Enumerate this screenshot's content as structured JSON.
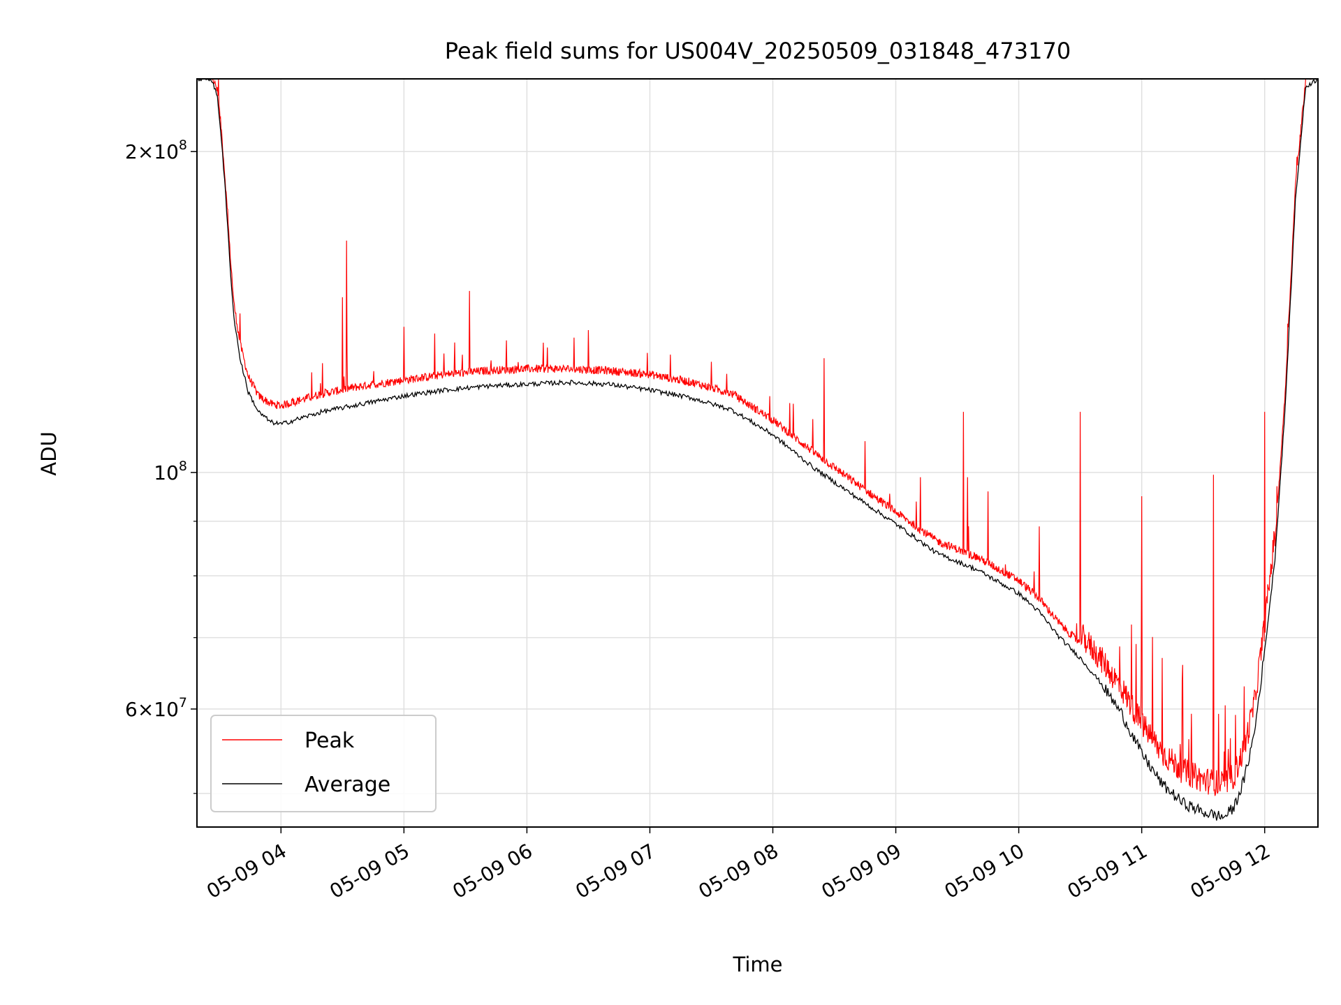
{
  "chart_data": {
    "type": "line",
    "title": "Peak field sums for US004V_20250509_031848_473170",
    "xlabel": "Time",
    "ylabel": "ADU",
    "yscale": "log",
    "grid": true,
    "legend_placement": "lower-left",
    "xlim": [
      "05-09 03:19",
      "05-09 12:26"
    ],
    "ylim": [
      46500000,
      234000000
    ],
    "x_ticks": [
      "05-09 04",
      "05-09 05",
      "05-09 06",
      "05-09 07",
      "05-09 08",
      "05-09 09",
      "05-09 10",
      "05-09 11",
      "05-09 12"
    ],
    "y_tick_labels": [
      {
        "value": 200000000,
        "mantissa": "2",
        "exponent": "8"
      },
      {
        "value": 100000000,
        "mantissa": "",
        "exponent": "8"
      },
      {
        "value": 60000000,
        "mantissa": "6",
        "exponent": "7"
      }
    ],
    "y_minor_ticks": [
      50000000,
      70000000,
      80000000,
      90000000
    ],
    "series": [
      {
        "name": "Average",
        "color": "#000000",
        "x": [
          "05-09 03:19",
          "05-09 03:26",
          "05-09 03:29",
          "05-09 03:31",
          "05-09 03:33",
          "05-09 03:35",
          "05-09 03:37",
          "05-09 03:40",
          "05-09 03:44",
          "05-09 03:49",
          "05-09 03:55",
          "05-09 04:00",
          "05-09 04:10",
          "05-09 04:20",
          "05-09 04:40",
          "05-09 05:00",
          "05-09 05:20",
          "05-09 05:40",
          "05-09 06:00",
          "05-09 06:20",
          "05-09 06:40",
          "05-09 07:00",
          "05-09 07:20",
          "05-09 07:40",
          "05-09 08:00",
          "05-09 08:20",
          "05-09 08:40",
          "05-09 09:00",
          "05-09 09:20",
          "05-09 09:40",
          "05-09 10:00",
          "05-09 10:10",
          "05-09 10:20",
          "05-09 10:30",
          "05-09 10:40",
          "05-09 10:50",
          "05-09 11:00",
          "05-09 11:10",
          "05-09 11:20",
          "05-09 11:30",
          "05-09 11:40",
          "05-09 11:45",
          "05-09 11:50",
          "05-09 11:55",
          "05-09 12:00",
          "05-09 12:05",
          "05-09 12:10",
          "05-09 12:15",
          "05-09 12:20",
          "05-09 12:26"
        ],
        "y": [
          234000000,
          234000000,
          225000000,
          205000000,
          182000000,
          158000000,
          140000000,
          128000000,
          119000000,
          114000000,
          111500000,
          111000000,
          112500000,
          114000000,
          116000000,
          118000000,
          119500000,
          120500000,
          121000000,
          121500000,
          121000000,
          119500000,
          117500000,
          114500000,
          108500000,
          101000000,
          95000000,
          89500000,
          84000000,
          81000000,
          77000000,
          74000000,
          70000000,
          67000000,
          63500000,
          59500000,
          54500000,
          51000000,
          49000000,
          48000000,
          47500000,
          48500000,
          51500000,
          57000000,
          68000000,
          83000000,
          115000000,
          180000000,
          230000000,
          234000000
        ]
      },
      {
        "name": "Peak",
        "color": "#ff0000",
        "x": [
          "05-09 03:19",
          "05-09 03:26",
          "05-09 03:29",
          "05-09 03:31",
          "05-09 03:33",
          "05-09 03:35",
          "05-09 03:37",
          "05-09 03:40",
          "05-09 03:44",
          "05-09 03:49",
          "05-09 03:55",
          "05-09 04:00",
          "05-09 04:10",
          "05-09 04:20",
          "05-09 04:40",
          "05-09 05:00",
          "05-09 05:20",
          "05-09 05:40",
          "05-09 06:00",
          "05-09 06:20",
          "05-09 06:40",
          "05-09 07:00",
          "05-09 07:20",
          "05-09 07:40",
          "05-09 08:00",
          "05-09 08:20",
          "05-09 08:40",
          "05-09 09:00",
          "05-09 09:20",
          "05-09 09:40",
          "05-09 10:00",
          "05-09 10:10",
          "05-09 10:20",
          "05-09 10:30",
          "05-09 10:40",
          "05-09 10:50",
          "05-09 11:00",
          "05-09 11:10",
          "05-09 11:20",
          "05-09 11:30",
          "05-09 11:40",
          "05-09 11:45",
          "05-09 11:50",
          "05-09 11:55",
          "05-09 12:00",
          "05-09 12:05",
          "05-09 12:10",
          "05-09 12:15",
          "05-09 12:20",
          "05-09 12:26"
        ],
        "y": [
          234000000,
          234000000,
          226000000,
          207000000,
          184000000,
          161000000,
          143000000,
          131000000,
          122000000,
          117000000,
          115000000,
          114500000,
          116000000,
          117500000,
          119500000,
          121000000,
          122500000,
          123500000,
          124000000,
          124000000,
          123500000,
          122500000,
          120500000,
          117500000,
          111000000,
          103500000,
          97000000,
          91000000,
          85500000,
          82500000,
          78500000,
          75500000,
          71500000,
          68500000,
          65000000,
          61000000,
          56500000,
          53000000,
          51000000,
          50000000,
          49500000,
          50500000,
          53500000,
          59000000,
          70000000,
          85000000,
          118000000,
          184000000,
          232000000,
          234000000
        ]
      }
    ],
    "peak_spikes": [
      {
        "x": "05-09 03:40",
        "y": 141000000
      },
      {
        "x": "05-09 04:30",
        "y": 146000000
      },
      {
        "x": "05-09 04:32",
        "y": 165000000
      },
      {
        "x": "05-09 05:00",
        "y": 137000000
      },
      {
        "x": "05-09 05:15",
        "y": 135000000
      },
      {
        "x": "05-09 05:32",
        "y": 148000000
      },
      {
        "x": "05-09 05:50",
        "y": 133000000
      },
      {
        "x": "05-09 06:10",
        "y": 131000000
      },
      {
        "x": "05-09 06:30",
        "y": 136000000
      },
      {
        "x": "05-09 07:10",
        "y": 129000000
      },
      {
        "x": "05-09 07:30",
        "y": 127000000
      },
      {
        "x": "05-09 08:10",
        "y": 116000000
      },
      {
        "x": "05-09 08:25",
        "y": 128000000
      },
      {
        "x": "05-09 08:45",
        "y": 107000000
      },
      {
        "x": "05-09 09:12",
        "y": 99000000
      },
      {
        "x": "05-09 09:33",
        "y": 114000000
      },
      {
        "x": "05-09 09:35",
        "y": 99000000
      },
      {
        "x": "05-09 09:45",
        "y": 96000000
      },
      {
        "x": "05-09 10:10",
        "y": 89000000
      },
      {
        "x": "05-09 10:30",
        "y": 114000000
      },
      {
        "x": "05-09 10:55",
        "y": 72000000
      },
      {
        "x": "05-09 11:00",
        "y": 95000000
      },
      {
        "x": "05-09 11:10",
        "y": 67000000
      },
      {
        "x": "05-09 11:20",
        "y": 66000000
      },
      {
        "x": "05-09 11:35",
        "y": 99500000
      },
      {
        "x": "05-09 11:50",
        "y": 63000000
      },
      {
        "x": "05-09 12:00",
        "y": 114000000
      }
    ]
  }
}
